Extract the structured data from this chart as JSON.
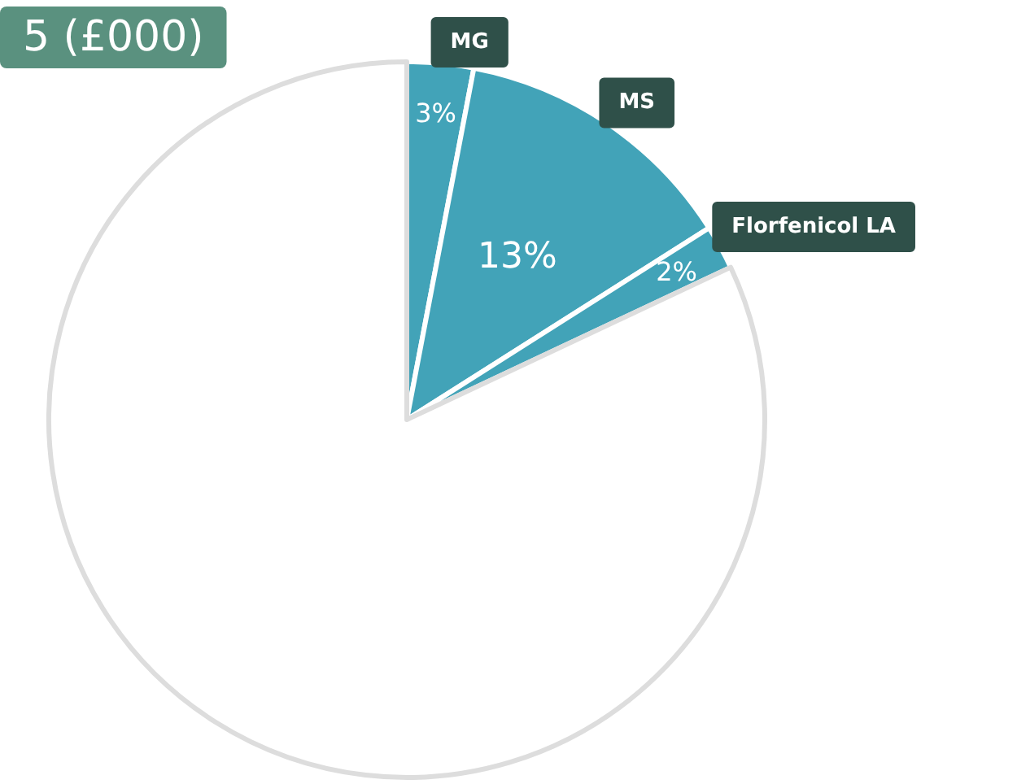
{
  "chart_data": {
    "type": "pie",
    "title": "5 (£000)",
    "categories": [
      "MG",
      "MS",
      "Florfenicol LA",
      null
    ],
    "values": [
      3,
      13,
      2,
      82
    ],
    "colors": [
      "#42a3b8",
      "#42a3b8",
      "#42a3b8",
      "#ffffff"
    ],
    "value_labels": [
      "3%",
      "13%",
      "2%",
      null
    ],
    "legend": false
  }
}
